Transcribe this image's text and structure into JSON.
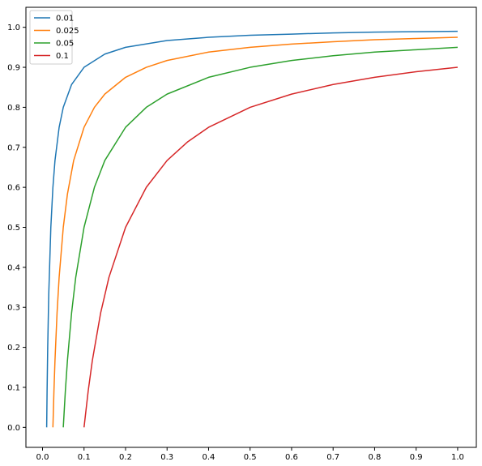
{
  "chart_data": {
    "type": "line",
    "title": "",
    "xlabel": "",
    "ylabel": "",
    "xlim": [
      -0.04,
      1.045
    ],
    "ylim": [
      -0.05,
      1.05
    ],
    "xticks": [
      "0.0",
      "0.1",
      "0.2",
      "0.3",
      "0.4",
      "0.5",
      "0.6",
      "0.7",
      "0.8",
      "0.9",
      "1.0"
    ],
    "yticks": [
      "0.0",
      "0.1",
      "0.2",
      "0.3",
      "0.4",
      "0.5",
      "0.6",
      "0.7",
      "0.8",
      "0.9",
      "1.0"
    ],
    "grid": false,
    "legend_position": "top-left",
    "series": [
      {
        "name": "0.01",
        "color": "#1f77b4",
        "points": [
          [
            0.01,
            0.0
          ],
          [
            0.011,
            0.091
          ],
          [
            0.0125,
            0.2
          ],
          [
            0.015,
            0.333
          ],
          [
            0.02,
            0.5
          ],
          [
            0.025,
            0.6
          ],
          [
            0.03,
            0.667
          ],
          [
            0.04,
            0.75
          ],
          [
            0.05,
            0.8
          ],
          [
            0.07,
            0.857
          ],
          [
            0.1,
            0.9
          ],
          [
            0.15,
            0.933
          ],
          [
            0.2,
            0.95
          ],
          [
            0.3,
            0.967
          ],
          [
            0.4,
            0.975
          ],
          [
            0.5,
            0.98
          ],
          [
            0.6,
            0.983
          ],
          [
            0.7,
            0.986
          ],
          [
            0.8,
            0.988
          ],
          [
            0.9,
            0.989
          ],
          [
            1.0,
            0.99
          ]
        ]
      },
      {
        "name": "0.025",
        "color": "#ff7f0e",
        "points": [
          [
            0.025,
            0.0
          ],
          [
            0.0275,
            0.091
          ],
          [
            0.03,
            0.167
          ],
          [
            0.035,
            0.286
          ],
          [
            0.04,
            0.375
          ],
          [
            0.05,
            0.5
          ],
          [
            0.06,
            0.583
          ],
          [
            0.075,
            0.667
          ],
          [
            0.1,
            0.75
          ],
          [
            0.125,
            0.8
          ],
          [
            0.15,
            0.833
          ],
          [
            0.2,
            0.875
          ],
          [
            0.25,
            0.9
          ],
          [
            0.3,
            0.917
          ],
          [
            0.4,
            0.938
          ],
          [
            0.5,
            0.95
          ],
          [
            0.6,
            0.958
          ],
          [
            0.7,
            0.964
          ],
          [
            0.8,
            0.969
          ],
          [
            0.9,
            0.972
          ],
          [
            1.0,
            0.975
          ]
        ]
      },
      {
        "name": "0.05",
        "color": "#2ca02c",
        "points": [
          [
            0.05,
            0.0
          ],
          [
            0.055,
            0.091
          ],
          [
            0.06,
            0.167
          ],
          [
            0.07,
            0.286
          ],
          [
            0.08,
            0.375
          ],
          [
            0.1,
            0.5
          ],
          [
            0.125,
            0.6
          ],
          [
            0.15,
            0.667
          ],
          [
            0.2,
            0.75
          ],
          [
            0.25,
            0.8
          ],
          [
            0.3,
            0.833
          ],
          [
            0.4,
            0.875
          ],
          [
            0.5,
            0.9
          ],
          [
            0.6,
            0.917
          ],
          [
            0.7,
            0.929
          ],
          [
            0.8,
            0.938
          ],
          [
            0.9,
            0.944
          ],
          [
            1.0,
            0.95
          ]
        ]
      },
      {
        "name": "0.1",
        "color": "#d62728",
        "points": [
          [
            0.1,
            0.0
          ],
          [
            0.11,
            0.091
          ],
          [
            0.12,
            0.167
          ],
          [
            0.14,
            0.286
          ],
          [
            0.16,
            0.375
          ],
          [
            0.2,
            0.5
          ],
          [
            0.25,
            0.6
          ],
          [
            0.3,
            0.667
          ],
          [
            0.35,
            0.714
          ],
          [
            0.4,
            0.75
          ],
          [
            0.5,
            0.8
          ],
          [
            0.6,
            0.833
          ],
          [
            0.7,
            0.857
          ],
          [
            0.8,
            0.875
          ],
          [
            0.9,
            0.889
          ],
          [
            1.0,
            0.9
          ]
        ]
      }
    ]
  }
}
